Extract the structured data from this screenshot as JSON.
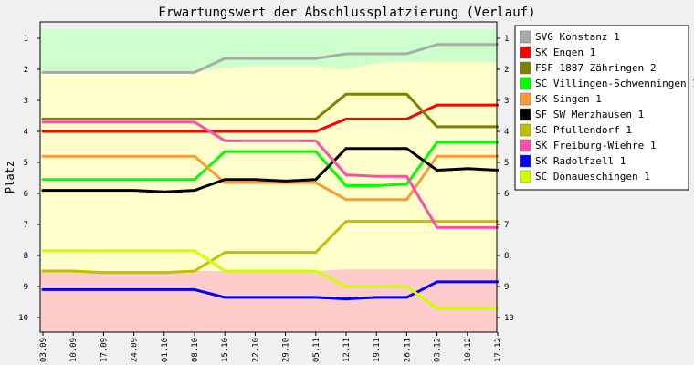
{
  "chart_data": {
    "type": "line",
    "title": "Erwartungswert der Abschlussplatzierung (Verlauf)",
    "ylabel": "Platz",
    "xlabel": "",
    "ylim": [
      1,
      10
    ],
    "y_inverted": true,
    "y_ticks": [
      "1",
      "2",
      "3",
      "4",
      "5",
      "6",
      "7",
      "8",
      "9",
      "10"
    ],
    "categories": [
      "03.09",
      "10.09",
      "17.09",
      "24.09",
      "01.10",
      "08.10",
      "15.10",
      "22.10",
      "29.10",
      "05.11",
      "12.11",
      "19.11",
      "26.11",
      "03.12",
      "10.12",
      "17.12"
    ],
    "bands": [
      {
        "label": "promotion",
        "color": "#ccffcc",
        "from": [
          0.7,
          0.7,
          0.7,
          0.7,
          0.7,
          0.7,
          0.7,
          0.7,
          0.7,
          0.7,
          0.7,
          0.7,
          0.7,
          0.7,
          0.7,
          0.7
        ],
        "to": [
          2.1,
          2.1,
          2.1,
          2.1,
          2.1,
          2.1,
          1.95,
          1.9,
          1.9,
          1.9,
          2.0,
          1.8,
          1.75,
          1.75,
          1.75,
          1.75
        ]
      },
      {
        "label": "middle",
        "color": "#ffffcc",
        "from": [
          2.1,
          2.1,
          2.1,
          2.1,
          2.1,
          2.1,
          1.95,
          1.9,
          1.9,
          1.9,
          2.0,
          1.8,
          1.75,
          1.75,
          1.75,
          1.75
        ],
        "to": [
          8.5,
          8.5,
          8.5,
          8.5,
          8.5,
          8.5,
          8.5,
          8.5,
          8.5,
          8.5,
          8.45,
          8.45,
          8.45,
          8.45,
          8.45,
          8.45
        ]
      },
      {
        "label": "relegation",
        "color": "#ffcccc",
        "from": [
          8.5,
          8.5,
          8.5,
          8.5,
          8.5,
          8.5,
          8.5,
          8.5,
          8.5,
          8.5,
          8.45,
          8.45,
          8.45,
          8.45,
          8.45,
          8.45
        ],
        "to": [
          10.5,
          10.5,
          10.5,
          10.5,
          10.5,
          10.5,
          10.5,
          10.5,
          10.5,
          10.5,
          10.5,
          10.5,
          10.5,
          10.5,
          10.5,
          10.5
        ]
      }
    ],
    "series": [
      {
        "name": "SVG Konstanz 1",
        "color": "#aaaaaa",
        "values": [
          2.1,
          2.1,
          2.1,
          2.1,
          2.1,
          2.1,
          1.65,
          1.65,
          1.65,
          1.65,
          1.5,
          1.5,
          1.5,
          1.2,
          1.2,
          1.2
        ]
      },
      {
        "name": "SK Engen 1",
        "color": "#ff0000",
        "values": [
          4.0,
          4.0,
          4.0,
          4.0,
          4.0,
          4.0,
          4.0,
          4.0,
          4.0,
          4.0,
          3.6,
          3.6,
          3.6,
          3.15,
          3.15,
          3.15
        ]
      },
      {
        "name": "FSF 1887 Zähringen 2",
        "color": "#808000",
        "values": [
          3.6,
          3.6,
          3.6,
          3.6,
          3.6,
          3.6,
          3.6,
          3.6,
          3.6,
          3.6,
          2.8,
          2.8,
          2.8,
          3.85,
          3.85,
          3.85
        ]
      },
      {
        "name": "SC Villingen-Schwenningen 1",
        "color": "#00ff00",
        "values": [
          5.55,
          5.55,
          5.55,
          5.55,
          5.55,
          5.55,
          4.65,
          4.65,
          4.65,
          4.65,
          5.75,
          5.75,
          5.7,
          4.35,
          4.35,
          4.35
        ]
      },
      {
        "name": "SK Singen 1",
        "color": "#ff9933",
        "values": [
          4.8,
          4.8,
          4.8,
          4.8,
          4.8,
          4.8,
          5.65,
          5.65,
          5.65,
          5.65,
          6.2,
          6.2,
          6.2,
          4.8,
          4.8,
          4.8
        ]
      },
      {
        "name": "SF SW Merzhausen 1",
        "color": "#000000",
        "values": [
          5.9,
          5.9,
          5.9,
          5.9,
          5.95,
          5.9,
          5.55,
          5.55,
          5.6,
          5.55,
          4.55,
          4.55,
          4.55,
          5.25,
          5.2,
          5.25
        ]
      },
      {
        "name": "SC Pfullendorf 1",
        "color": "#c0c000",
        "values": [
          8.5,
          8.5,
          8.55,
          8.55,
          8.55,
          8.5,
          7.9,
          7.9,
          7.9,
          7.9,
          6.9,
          6.9,
          6.9,
          6.9,
          6.9,
          6.9
        ]
      },
      {
        "name": "SK Freiburg-Wiehre 1",
        "color": "#ff4fa7",
        "values": [
          3.7,
          3.7,
          3.7,
          3.7,
          3.7,
          3.7,
          4.3,
          4.3,
          4.3,
          4.3,
          5.4,
          5.45,
          5.45,
          7.1,
          7.1,
          7.1
        ]
      },
      {
        "name": "SK Radolfzell 1",
        "color": "#0000ff",
        "values": [
          9.1,
          9.1,
          9.1,
          9.1,
          9.1,
          9.1,
          9.35,
          9.35,
          9.35,
          9.35,
          9.4,
          9.35,
          9.35,
          8.85,
          8.85,
          8.85
        ]
      },
      {
        "name": "SC Donaueschingen 1",
        "color": "#ccff00",
        "values": [
          7.85,
          7.85,
          7.85,
          7.85,
          7.85,
          7.85,
          8.5,
          8.5,
          8.5,
          8.5,
          9.0,
          9.0,
          9.0,
          9.7,
          9.7,
          9.7
        ]
      }
    ]
  }
}
